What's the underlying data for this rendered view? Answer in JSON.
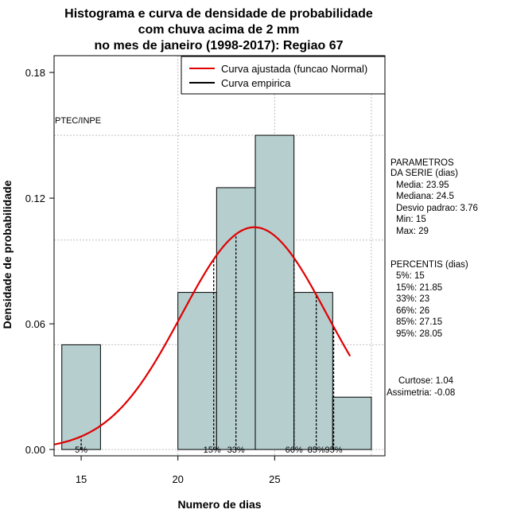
{
  "chart_data": {
    "type": "bar",
    "title_lines": [
      "Histograma e curva de densidade de probabilidade",
      "com chuva acima de 2 mm",
      "no mes de janeiro (1998-2017): Regiao 67"
    ],
    "xlabel": "Numero de dias",
    "ylabel": "Densidade de probabilidade",
    "xlim": [
      13.6,
      30.7
    ],
    "ylim": [
      -0.003,
      0.188
    ],
    "x_ticks": [
      15,
      20,
      25
    ],
    "y_ticks": [
      0.0,
      0.06,
      0.12,
      0.18
    ],
    "y_tick_labels": [
      "0.00",
      "0.06",
      "0.12",
      "0.18"
    ],
    "grid": true,
    "bins": [
      {
        "start": 14,
        "end": 16,
        "density": 0.05
      },
      {
        "start": 16,
        "end": 18,
        "density": 0.0
      },
      {
        "start": 18,
        "end": 20,
        "density": 0.0
      },
      {
        "start": 20,
        "end": 22,
        "density": 0.075
      },
      {
        "start": 22,
        "end": 24,
        "density": 0.125
      },
      {
        "start": 24,
        "end": 26,
        "density": 0.15
      },
      {
        "start": 26,
        "end": 28,
        "density": 0.075
      },
      {
        "start": 28,
        "end": 30,
        "density": 0.025
      }
    ],
    "normal_curve": {
      "mean": 23.95,
      "sd": 3.76,
      "x_range": [
        13.6,
        28.9
      ],
      "color": "#e00000"
    },
    "bar_color": "#b7cece",
    "percentile_marks": [
      {
        "label": "5%",
        "x": 15
      },
      {
        "label": "15%",
        "x": 21.85
      },
      {
        "label": "33%",
        "x": 23
      },
      {
        "label": "66%",
        "x": 26
      },
      {
        "label": "85%",
        "x": 27.15
      },
      {
        "label": "95%",
        "x": 28.05
      }
    ],
    "legend": {
      "position": "top-right",
      "entries": [
        {
          "label": "Curva ajustada (funcao Normal)",
          "color": "#e00000"
        },
        {
          "label": "Curva empirica",
          "color": "#000000"
        }
      ]
    },
    "annotation": "PTEC/INPE",
    "parametros": {
      "heading": [
        "PARAMETROS",
        "DA SERIE (dias)"
      ],
      "lines": [
        "Media: 23.95",
        "Mediana: 24.5",
        "Desvio padrao: 3.76",
        "Min: 15",
        "Max: 29"
      ]
    },
    "percentis": {
      "heading": "PERCENTIS (dias)",
      "lines": [
        "5%: 15",
        "15%: 21.85",
        "33%: 23",
        "66%: 26",
        "85%: 27.15",
        "95%: 28.05"
      ]
    },
    "shape": {
      "lines": [
        "Curtose: 1.04",
        "Assimetria: -0.08"
      ]
    }
  }
}
